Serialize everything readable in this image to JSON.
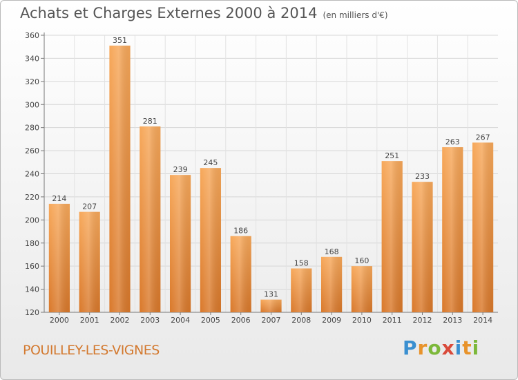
{
  "header": {
    "title": "Achats et Charges Externes 2000 à 2014",
    "unit": "(en milliers d'€)"
  },
  "footer": {
    "commune": "POUILLEY-LES-VIGNES",
    "logo_letters": [
      "P",
      "r",
      "o",
      "x",
      "i",
      "t",
      "i"
    ],
    "logo_colors": [
      "#3a8fd0",
      "#e8932b",
      "#7cb83a",
      "#d94a3a",
      "#3a8fd0",
      "#e8932b",
      "#7cb83a"
    ]
  },
  "chart_data": {
    "type": "bar",
    "title": "Achats et Charges Externes 2000 à 2014",
    "subtitle": "(en milliers d'€)",
    "xlabel": "",
    "ylabel": "",
    "categories": [
      "2000",
      "2001",
      "2002",
      "2003",
      "2004",
      "2005",
      "2006",
      "2007",
      "2008",
      "2009",
      "2010",
      "2011",
      "2012",
      "2013",
      "2014"
    ],
    "values": [
      214,
      207,
      351,
      281,
      239,
      245,
      186,
      131,
      158,
      168,
      160,
      251,
      233,
      263,
      267
    ],
    "ylim": [
      120,
      360
    ],
    "yticks": [
      120,
      140,
      160,
      180,
      200,
      220,
      240,
      260,
      280,
      300,
      320,
      340,
      360
    ],
    "grid": true,
    "bar_color": "#f29d4b",
    "bar_color_dark": "#d9782a"
  }
}
